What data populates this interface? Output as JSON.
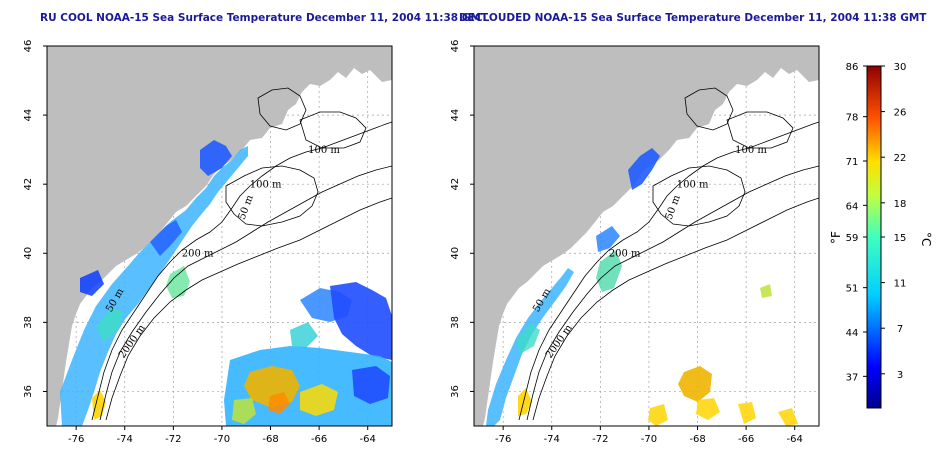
{
  "panels": [
    {
      "id": "left",
      "title": "RU COOL NOAA-15 Sea Surface Temperature December 11, 2004 11:38 GMT"
    },
    {
      "id": "right",
      "title": "DECLOUDED NOAA-15 Sea Surface Temperature December 11, 2004 11:38 GMT"
    }
  ],
  "axes": {
    "lon_ticks": [
      -76,
      -74,
      -72,
      -70,
      -68,
      -66,
      -64
    ],
    "lat_ticks": [
      36,
      38,
      40,
      42,
      44,
      46
    ],
    "lon_range": [
      -77.2,
      -63.0
    ],
    "lat_range": [
      35.0,
      46.0
    ]
  },
  "contours": [
    {
      "label": "100 m",
      "lon": -65.8,
      "lat": 42.9
    },
    {
      "label": "100 m",
      "lon": -68.2,
      "lat": 41.9
    },
    {
      "label": "50 m",
      "lon": -68.9,
      "lat": 41.3
    },
    {
      "label": "200 m",
      "lon": -71.0,
      "lat": 39.9
    },
    {
      "label": "50 m",
      "lon": -74.3,
      "lat": 38.6
    },
    {
      "label": "2000 m",
      "lon": -73.6,
      "lat": 37.4
    }
  ],
  "colorbar": {
    "fahrenheit_ticks": [
      "86",
      "78",
      "71",
      "64",
      "59",
      "51",
      "44",
      "37"
    ],
    "celsius_ticks": [
      "30",
      "26",
      "22",
      "18",
      "15",
      "11",
      "7",
      "3"
    ],
    "fahrenheit_unit": "°F",
    "celsius_unit": "°C",
    "range_c": [
      0,
      30
    ]
  },
  "colors": {
    "land": "#bebebe",
    "title": "#1a1a99",
    "grid": "#a0a0a0"
  }
}
